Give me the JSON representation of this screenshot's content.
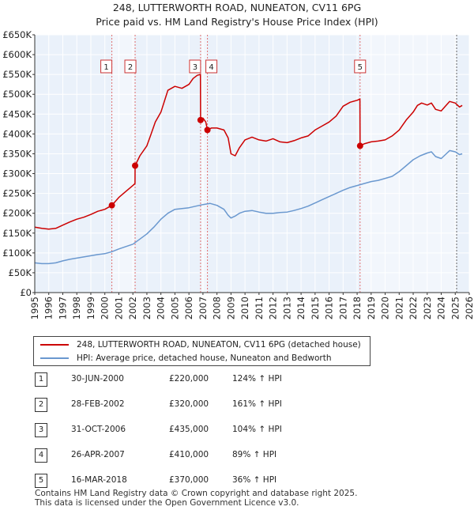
{
  "title_line1": "248, LUTTERWORTH ROAD, NUNEATON, CV11 6PG",
  "title_line2": "Price paid vs. HM Land Registry's House Price Index (HPI)",
  "legend": {
    "property": "248, LUTTERWORTH ROAD, NUNEATON, CV11 6PG (detached house)",
    "hpi": "HPI: Average price, detached house, Nuneaton and Bedworth"
  },
  "colors": {
    "property": "#cc0000",
    "hpi": "#6a98cf",
    "plot_bg": "#eaf1fa",
    "highlight": "#f2f6fc",
    "grid": "#ffffff",
    "sale_line": "#e07070"
  },
  "sales": [
    {
      "num": "1",
      "date": "30-JUN-2000",
      "price": "£220,000",
      "hpi": "124% ↑ HPI"
    },
    {
      "num": "2",
      "date": "28-FEB-2002",
      "price": "£320,000",
      "hpi": "161% ↑ HPI"
    },
    {
      "num": "3",
      "date": "31-OCT-2006",
      "price": "£435,000",
      "hpi": "104% ↑ HPI"
    },
    {
      "num": "4",
      "date": "26-APR-2007",
      "price": "£410,000",
      "hpi": "89% ↑ HPI"
    },
    {
      "num": "5",
      "date": "16-MAR-2018",
      "price": "£370,000",
      "hpi": "36% ↑ HPI"
    }
  ],
  "footer_line1": "Contains HM Land Registry data © Crown copyright and database right 2025.",
  "footer_line2": "This data is licensed under the Open Government Licence v3.0.",
  "chart_data": {
    "type": "line",
    "title": "248, LUTTERWORTH ROAD, NUNEATON, CV11 6PG — Price paid vs. HM Land Registry's House Price Index (HPI)",
    "xlabel": "",
    "ylabel": "",
    "xlim": [
      1995,
      2026
    ],
    "ylim": [
      0,
      650000
    ],
    "x_ticks": [
      1995,
      1996,
      1997,
      1998,
      1999,
      2000,
      2001,
      2002,
      2003,
      2004,
      2005,
      2006,
      2007,
      2008,
      2009,
      2010,
      2011,
      2012,
      2013,
      2014,
      2015,
      2016,
      2017,
      2018,
      2019,
      2020,
      2021,
      2022,
      2023,
      2024,
      2025,
      2026
    ],
    "y_ticks": [
      {
        "value": 0,
        "label": "£0"
      },
      {
        "value": 50000,
        "label": "£50K"
      },
      {
        "value": 100000,
        "label": "£100K"
      },
      {
        "value": 150000,
        "label": "£150K"
      },
      {
        "value": 200000,
        "label": "£200K"
      },
      {
        "value": 250000,
        "label": "£250K"
      },
      {
        "value": 300000,
        "label": "£300K"
      },
      {
        "value": 350000,
        "label": "£350K"
      },
      {
        "value": 400000,
        "label": "£400K"
      },
      {
        "value": 450000,
        "label": "£450K"
      },
      {
        "value": 500000,
        "label": "£500K"
      },
      {
        "value": 550000,
        "label": "£550K"
      },
      {
        "value": 600000,
        "label": "£600K"
      },
      {
        "value": 650000,
        "label": "£650K"
      }
    ],
    "highlight_ranges": [
      [
        2000.5,
        2002.16
      ],
      [
        2006.83,
        2007.32
      ],
      [
        2018.21,
        2025.1
      ]
    ],
    "future_start": 2025.1,
    "sale_markers": [
      {
        "label": "1",
        "x": 2000.5,
        "y": 220000
      },
      {
        "label": "2",
        "x": 2002.16,
        "y": 320000
      },
      {
        "label": "3",
        "x": 2006.83,
        "y": 435000
      },
      {
        "label": "4",
        "x": 2007.32,
        "y": 410000
      },
      {
        "label": "5",
        "x": 2018.21,
        "y": 370000
      }
    ],
    "series": [
      {
        "name": "248, LUTTERWORTH ROAD, NUNEATON, CV11 6PG (detached house)",
        "color": "#cc0000",
        "x": [
          1995,
          1995.5,
          1996,
          1996.5,
          1997,
          1997.5,
          1998,
          1998.5,
          1999,
          1999.5,
          2000,
          2000.5,
          2001,
          2001.5,
          2002,
          2002.15,
          2002.16,
          2002.5,
          2003,
          2003.3,
          2003.6,
          2004,
          2004.5,
          2005,
          2005.5,
          2006,
          2006.3,
          2006.6,
          2006.82,
          2006.83,
          2007,
          2007.2,
          2007.32,
          2007.6,
          2008,
          2008.5,
          2008.8,
          2009,
          2009.3,
          2009.6,
          2010,
          2010.5,
          2011,
          2011.5,
          2012,
          2012.5,
          2013,
          2013.5,
          2014,
          2014.5,
          2015,
          2015.5,
          2016,
          2016.5,
          2017,
          2017.5,
          2018,
          2018.2,
          2018.21,
          2018.5,
          2019,
          2019.5,
          2020,
          2020.5,
          2021,
          2021.5,
          2022,
          2022.3,
          2022.6,
          2023,
          2023.3,
          2023.6,
          2024,
          2024.3,
          2024.6,
          2025,
          2025.3,
          2025.5
        ],
        "y": [
          165000,
          162000,
          160000,
          162000,
          170000,
          178000,
          185000,
          190000,
          197000,
          205000,
          210000,
          220000,
          240000,
          255000,
          270000,
          275000,
          320000,
          345000,
          370000,
          400000,
          430000,
          455000,
          510000,
          520000,
          515000,
          525000,
          540000,
          548000,
          550000,
          435000,
          440000,
          430000,
          410000,
          415000,
          415000,
          410000,
          390000,
          350000,
          345000,
          365000,
          385000,
          392000,
          385000,
          382000,
          388000,
          380000,
          378000,
          383000,
          390000,
          395000,
          410000,
          420000,
          430000,
          445000,
          470000,
          480000,
          485000,
          488000,
          370000,
          375000,
          380000,
          382000,
          385000,
          395000,
          410000,
          435000,
          455000,
          472000,
          478000,
          473000,
          478000,
          462000,
          458000,
          470000,
          482000,
          478000,
          468000,
          472000
        ]
      },
      {
        "name": "HPI: Average price, detached house, Nuneaton and Bedworth",
        "color": "#6a98cf",
        "x": [
          1995,
          1995.5,
          1996,
          1996.5,
          1997,
          1997.5,
          1998,
          1998.5,
          1999,
          1999.5,
          2000,
          2000.5,
          2001,
          2001.5,
          2002,
          2002.5,
          2003,
          2003.5,
          2004,
          2004.5,
          2005,
          2005.5,
          2006,
          2006.5,
          2007,
          2007.5,
          2008,
          2008.5,
          2008.8,
          2009,
          2009.3,
          2009.6,
          2010,
          2010.5,
          2011,
          2011.5,
          2012,
          2012.5,
          2013,
          2013.5,
          2014,
          2014.5,
          2015,
          2015.5,
          2016,
          2016.5,
          2017,
          2017.5,
          2018,
          2018.5,
          2019,
          2019.5,
          2020,
          2020.5,
          2021,
          2021.5,
          2022,
          2022.5,
          2023,
          2023.3,
          2023.6,
          2024,
          2024.3,
          2024.6,
          2025,
          2025.3,
          2025.5
        ],
        "y": [
          75000,
          73000,
          73000,
          75000,
          80000,
          84000,
          87000,
          90000,
          93000,
          96000,
          98000,
          103000,
          110000,
          116000,
          122000,
          135000,
          148000,
          165000,
          185000,
          200000,
          210000,
          212000,
          214000,
          218000,
          222000,
          225000,
          220000,
          210000,
          195000,
          188000,
          193000,
          200000,
          205000,
          207000,
          203000,
          200000,
          200000,
          202000,
          203000,
          207000,
          212000,
          218000,
          226000,
          234000,
          242000,
          250000,
          258000,
          265000,
          270000,
          275000,
          280000,
          283000,
          288000,
          293000,
          305000,
          320000,
          335000,
          345000,
          352000,
          355000,
          343000,
          338000,
          348000,
          358000,
          355000,
          348000,
          350000
        ]
      }
    ]
  }
}
